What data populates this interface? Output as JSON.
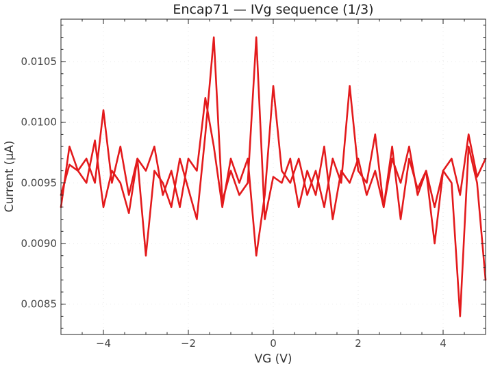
{
  "chart_data": {
    "type": "line",
    "title": "Encap71 — IVg sequence (1/3)",
    "xlabel": "VG (V)",
    "ylabel": "Current (µA)",
    "xlim": [
      -5,
      5
    ],
    "ylim": [
      0.00825,
      0.01085
    ],
    "xticks": [
      -4,
      -2,
      0,
      2,
      4
    ],
    "xtick_labels": [
      "−4",
      "−2",
      "0",
      "2",
      "4"
    ],
    "yticks": [
      0.0085,
      0.009,
      0.0095,
      0.01,
      0.0105
    ],
    "ytick_labels": [
      "0.0085",
      "0.0090",
      "0.0095",
      "0.0100",
      "0.0105"
    ],
    "grid": true,
    "colors": {
      "series": "#e31a1c",
      "axis": "#222222"
    },
    "series": [
      {
        "name": "",
        "sweep": "forward",
        "x": [
          -5.0,
          -4.8,
          -4.6,
          -4.4,
          -4.2,
          -4.0,
          -3.8,
          -3.6,
          -3.4,
          -3.2,
          -3.0,
          -2.8,
          -2.6,
          -2.4,
          -2.2,
          -2.0,
          -1.8,
          -1.6,
          -1.4,
          -1.2,
          -1.0,
          -0.8,
          -0.6,
          -0.4,
          -0.2,
          0.0,
          0.2,
          0.4,
          0.6,
          0.8,
          1.0,
          1.2,
          1.4,
          1.6,
          1.8,
          2.0,
          2.2,
          2.4,
          2.6,
          2.8,
          3.0,
          3.2,
          3.4,
          3.6,
          3.8,
          4.0,
          4.2,
          4.4,
          4.6,
          4.8,
          5.0
        ],
        "y": [
          0.0094,
          0.00965,
          0.0096,
          0.0095,
          0.00985,
          0.0093,
          0.0096,
          0.0095,
          0.00925,
          0.0097,
          0.0089,
          0.0096,
          0.0095,
          0.0093,
          0.0097,
          0.00945,
          0.0092,
          0.0099,
          0.0107,
          0.00935,
          0.0096,
          0.0094,
          0.0095,
          0.0107,
          0.0092,
          0.00955,
          0.0095,
          0.0097,
          0.0093,
          0.0096,
          0.0094,
          0.0098,
          0.0092,
          0.0096,
          0.0095,
          0.0097,
          0.0094,
          0.0096,
          0.0093,
          0.0098,
          0.0092,
          0.0097,
          0.00945,
          0.0096,
          0.0093,
          0.0096,
          0.0095,
          0.0084,
          0.0098,
          0.0095,
          0.0087
        ]
      },
      {
        "name": "",
        "sweep": "reverse",
        "x": [
          5.0,
          4.8,
          4.6,
          4.4,
          4.2,
          4.0,
          3.8,
          3.6,
          3.4,
          3.2,
          3.0,
          2.8,
          2.6,
          2.4,
          2.2,
          2.0,
          1.8,
          1.6,
          1.4,
          1.2,
          1.0,
          0.8,
          0.6,
          0.4,
          0.2,
          0.0,
          -0.2,
          -0.4,
          -0.6,
          -0.8,
          -1.0,
          -1.2,
          -1.4,
          -1.6,
          -1.8,
          -2.0,
          -2.2,
          -2.4,
          -2.6,
          -2.8,
          -3.0,
          -3.2,
          -3.4,
          -3.6,
          -3.8,
          -4.0,
          -4.2,
          -4.4,
          -4.6,
          -4.8,
          -5.0
        ],
        "y": [
          0.0097,
          0.00955,
          0.0099,
          0.0094,
          0.0097,
          0.0096,
          0.009,
          0.0096,
          0.0094,
          0.0098,
          0.0095,
          0.0097,
          0.0093,
          0.0099,
          0.0095,
          0.0096,
          0.0103,
          0.0095,
          0.0097,
          0.0093,
          0.0096,
          0.0094,
          0.0097,
          0.0095,
          0.0096,
          0.0103,
          0.0094,
          0.0089,
          0.0097,
          0.0095,
          0.0097,
          0.0093,
          0.0098,
          0.0102,
          0.0096,
          0.0097,
          0.0093,
          0.0096,
          0.0094,
          0.0098,
          0.0096,
          0.0097,
          0.0094,
          0.0098,
          0.0095,
          0.0101,
          0.0095,
          0.0097,
          0.0096,
          0.0098,
          0.0093
        ]
      }
    ]
  }
}
